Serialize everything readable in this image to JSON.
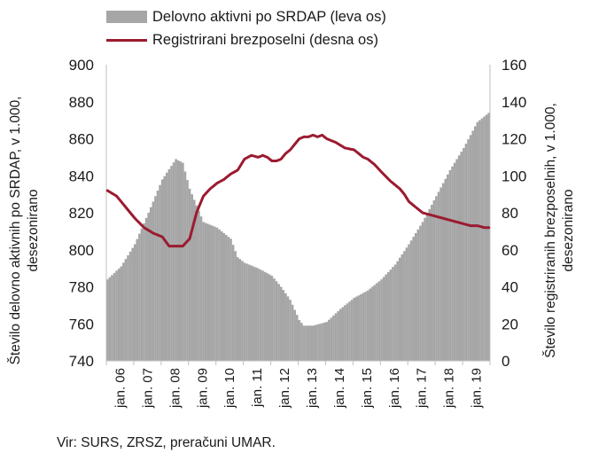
{
  "legend": {
    "bar_label": "Delovno aktivni po SRDAP (leva os)",
    "line_label": "Registrirani brezposelni (desna os)"
  },
  "axes": {
    "left_label_line1": "Število delovno aktivnih po SRDAP, v 1.000,",
    "left_label_line2": "desezonirano",
    "right_label_line1": "Število registriranih brezposelnih, v 1.000,",
    "right_label_line2": "desezonirano"
  },
  "source": "Vir: SURS, ZRSZ, preračuni UMAR.",
  "colors": {
    "bars": "#a6a6a6",
    "line": "#9b1b30",
    "axis": "#bfbfbf"
  },
  "chart_data": {
    "type": "bar+line",
    "x_ticks": [
      "jan. 06",
      "jan. 07",
      "jan. 08",
      "jan. 09",
      "jan. 10",
      "jan. 11",
      "jan. 12",
      "jan. 13",
      "jan. 14",
      "jan. 15",
      "jan. 16",
      "jan. 17",
      "jan. 18",
      "jan. 19"
    ],
    "y_left": {
      "min": 740,
      "max": 900,
      "ticks": [
        740,
        760,
        780,
        800,
        820,
        840,
        860,
        880,
        900
      ]
    },
    "y_right": {
      "min": 0,
      "max": 160,
      "ticks": [
        0,
        20,
        40,
        60,
        80,
        100,
        120,
        140,
        160
      ]
    },
    "series": [
      {
        "name": "Delovno aktivni po SRDAP (leva os)",
        "type": "bar",
        "axis": "left",
        "anchors": [
          [
            0,
            784
          ],
          [
            6,
            791
          ],
          [
            12,
            803
          ],
          [
            18,
            820
          ],
          [
            24,
            838
          ],
          [
            30,
            849
          ],
          [
            33,
            847
          ],
          [
            36,
            833
          ],
          [
            42,
            815
          ],
          [
            48,
            812
          ],
          [
            54,
            806
          ],
          [
            57,
            796
          ],
          [
            60,
            793
          ],
          [
            66,
            790
          ],
          [
            72,
            786
          ],
          [
            76,
            780
          ],
          [
            80,
            773
          ],
          [
            84,
            762
          ],
          [
            86,
            759
          ],
          [
            90,
            759
          ],
          [
            96,
            761
          ],
          [
            102,
            768
          ],
          [
            108,
            774
          ],
          [
            114,
            778
          ],
          [
            120,
            784
          ],
          [
            126,
            792
          ],
          [
            132,
            803
          ],
          [
            138,
            815
          ],
          [
            144,
            829
          ],
          [
            150,
            843
          ],
          [
            156,
            855
          ],
          [
            162,
            869
          ],
          [
            168,
            875
          ],
          [
            171,
            878
          ]
        ]
      },
      {
        "name": "Registrirani brezposelni (desna os)",
        "type": "line",
        "axis": "right",
        "anchors": [
          [
            0,
            92
          ],
          [
            4,
            89
          ],
          [
            8,
            83
          ],
          [
            12,
            77
          ],
          [
            16,
            72
          ],
          [
            20,
            69
          ],
          [
            24,
            67
          ],
          [
            27,
            62
          ],
          [
            30,
            62
          ],
          [
            33,
            62
          ],
          [
            36,
            66
          ],
          [
            39,
            80
          ],
          [
            42,
            89
          ],
          [
            45,
            93
          ],
          [
            48,
            96
          ],
          [
            51,
            98
          ],
          [
            54,
            101
          ],
          [
            57,
            103
          ],
          [
            60,
            109
          ],
          [
            63,
            111
          ],
          [
            66,
            110
          ],
          [
            68,
            111
          ],
          [
            70,
            110
          ],
          [
            72,
            108
          ],
          [
            74,
            108
          ],
          [
            76,
            109
          ],
          [
            78,
            112
          ],
          [
            80,
            114
          ],
          [
            82,
            117
          ],
          [
            84,
            120
          ],
          [
            86,
            121
          ],
          [
            88,
            121
          ],
          [
            90,
            122
          ],
          [
            92,
            121
          ],
          [
            94,
            122
          ],
          [
            96,
            120
          ],
          [
            100,
            118
          ],
          [
            104,
            115
          ],
          [
            108,
            114
          ],
          [
            110,
            112
          ],
          [
            112,
            110
          ],
          [
            114,
            109
          ],
          [
            117,
            106
          ],
          [
            120,
            102
          ],
          [
            124,
            97
          ],
          [
            128,
            93
          ],
          [
            130,
            90
          ],
          [
            132,
            86
          ],
          [
            135,
            83
          ],
          [
            138,
            80
          ],
          [
            141,
            79
          ],
          [
            144,
            78
          ],
          [
            147,
            77
          ],
          [
            150,
            76
          ],
          [
            153,
            75
          ],
          [
            156,
            74
          ],
          [
            159,
            73
          ],
          [
            162,
            73
          ],
          [
            165,
            72
          ]
        ]
      }
    ]
  }
}
